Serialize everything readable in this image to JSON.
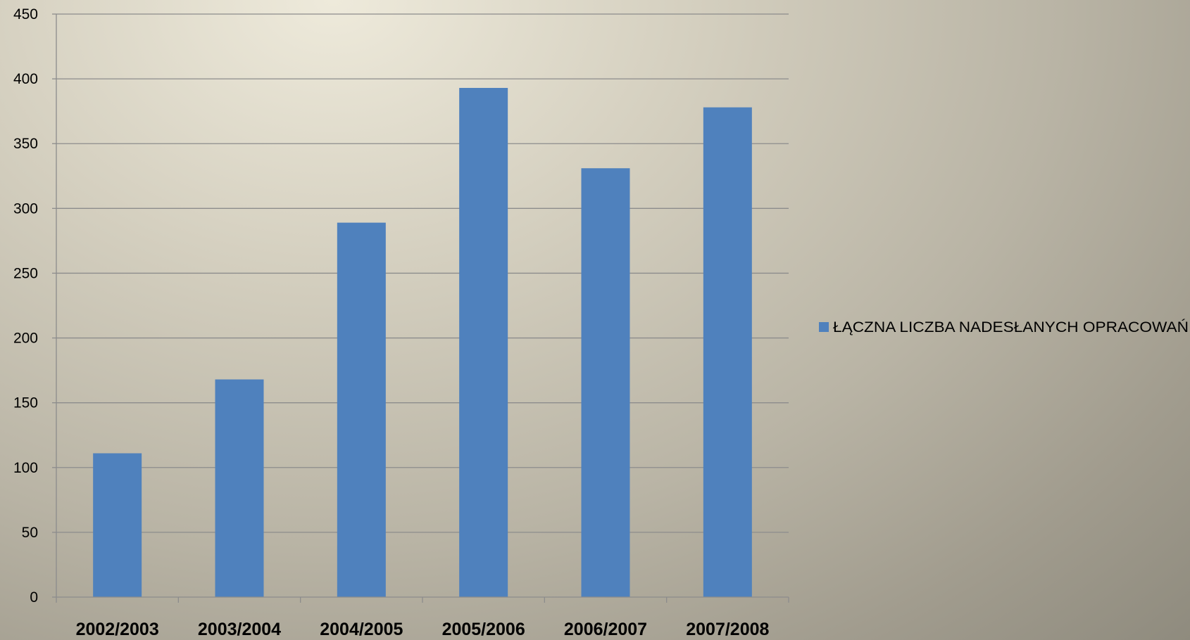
{
  "chart_data": {
    "type": "bar",
    "title": "",
    "xlabel": "",
    "ylabel": "",
    "categories": [
      "2002/2003",
      "2003/2004",
      "2004/2005",
      "2005/2006",
      "2006/2007",
      "2007/2008"
    ],
    "series": [
      {
        "name": "ŁĄCZNA  LICZBA  NADESŁANYCH OPRACOWAŃ",
        "values": [
          111,
          168,
          289,
          393,
          331,
          378
        ]
      }
    ],
    "ylim": [
      0,
      450
    ],
    "yticks": [
      0,
      50,
      100,
      150,
      200,
      250,
      300,
      350,
      400,
      450
    ],
    "grid": true,
    "legend_position": "right",
    "colors": {
      "bar": "#4f81bd",
      "grid": "#8c8c8c",
      "axis": "#8c8c8c"
    }
  }
}
